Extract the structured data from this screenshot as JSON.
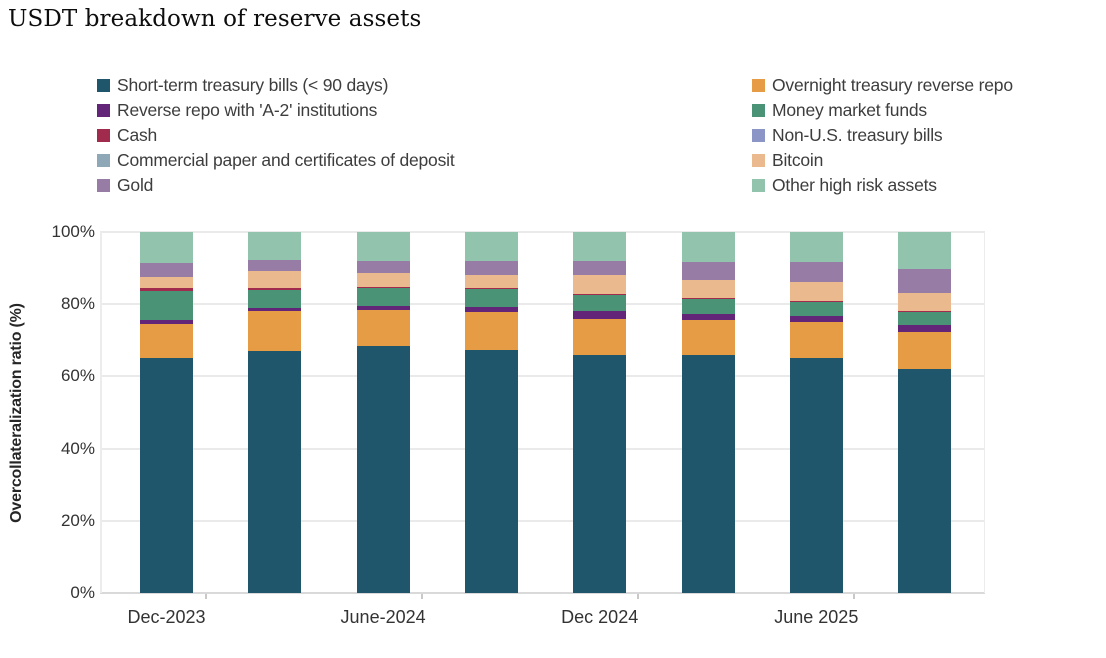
{
  "title": "USDT breakdown of reserve assets",
  "y_axis": {
    "label": "Overcollateralization ratio (%)",
    "ticks": [
      "0%",
      "20%",
      "40%",
      "60%",
      "80%",
      "100%"
    ]
  },
  "x_axis": {
    "tick_labels": [
      "Dec-2023",
      "June-2024",
      "Dec 2024",
      "June 2025"
    ]
  },
  "colors": {
    "background": "#ffffff",
    "gridline": "#eaeaea",
    "axis_line": "#d9d9d9",
    "tick_text": "#333333",
    "legend_text": "#3d3d3d"
  },
  "chart_data": {
    "type": "bar",
    "stacked": true,
    "title": "USDT breakdown of reserve assets",
    "ylabel": "Overcollateralization ratio (%)",
    "ylim": [
      0,
      100
    ],
    "grid": true,
    "legend_position": "top, two columns",
    "categories": [
      "Dec-2023",
      "",
      "June-2024",
      "",
      "Dec 2024",
      "",
      "June 2025",
      ""
    ],
    "series": [
      {
        "name": "Short-term treasury bills (< 90 days)",
        "color": "#1f566b",
        "values": [
          65.2,
          67.0,
          68.5,
          67.3,
          65.9,
          66.0,
          65.0,
          62.0
        ]
      },
      {
        "name": "Overnight treasury reverse repo",
        "color": "#e59c45",
        "values": [
          9.3,
          11.0,
          9.8,
          10.5,
          10.1,
          9.6,
          10.2,
          10.2
        ]
      },
      {
        "name": "Reverse repo with 'A-2' institutions",
        "color": "#632577",
        "values": [
          1.0,
          0.9,
          1.1,
          1.3,
          2.2,
          1.7,
          1.6,
          2.0
        ]
      },
      {
        "name": "Money market funds",
        "color": "#4a9377",
        "values": [
          8.2,
          5.1,
          5.0,
          5.1,
          4.3,
          4.1,
          3.8,
          3.7
        ]
      },
      {
        "name": "Cash",
        "color": "#a02b4d",
        "values": [
          0.8,
          0.4,
          0.4,
          0.3,
          0.3,
          0.3,
          0.3,
          0.3
        ]
      },
      {
        "name": "Non-U.S. treasury bills",
        "color": "#8c96c6",
        "values": [
          0,
          0,
          0,
          0,
          0,
          0,
          0,
          0
        ]
      },
      {
        "name": "Commercial paper and certificates of deposit",
        "color": "#8fa8b8",
        "values": [
          0,
          0,
          0,
          0,
          0,
          0,
          0,
          0
        ]
      },
      {
        "name": "Bitcoin",
        "color": "#eaba8e",
        "values": [
          3.1,
          4.9,
          3.8,
          3.6,
          5.3,
          5.1,
          5.2,
          4.9
        ]
      },
      {
        "name": "Gold",
        "color": "#977ca6",
        "values": [
          3.8,
          3.0,
          3.4,
          3.9,
          3.8,
          4.8,
          5.6,
          6.7
        ]
      },
      {
        "name": "Other high risk assets",
        "color": "#92c4ad",
        "values": [
          8.6,
          7.7,
          8.0,
          8.0,
          8.1,
          8.4,
          8.3,
          10.2
        ]
      }
    ]
  }
}
